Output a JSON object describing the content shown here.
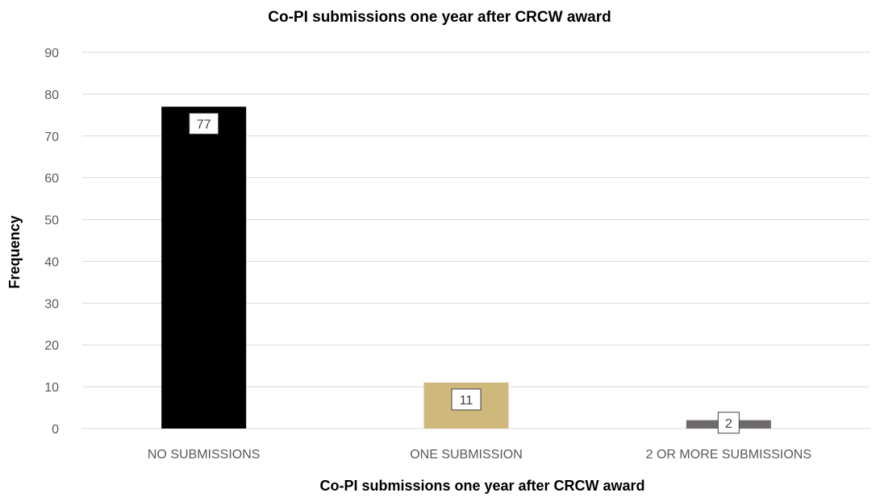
{
  "chart_data": {
    "type": "bar",
    "title": "Co-PI submissions one year after CRCW award",
    "xlabel": "Co-PI submissions one year after CRCW award",
    "ylabel": "Frequency",
    "categories": [
      "NO SUBMISSIONS",
      "ONE SUBMISSION",
      "2 OR MORE SUBMISSIONS"
    ],
    "values": [
      77,
      11,
      2
    ],
    "data_labels": [
      "77",
      "11",
      "2"
    ],
    "bar_colors": [
      "#000000",
      "#cfb87c",
      "#6f6a6a"
    ],
    "ylim": [
      0,
      90
    ],
    "yticks": [
      0,
      10,
      20,
      30,
      40,
      50,
      60,
      70,
      80,
      90
    ],
    "grid": true,
    "legend": "none"
  }
}
